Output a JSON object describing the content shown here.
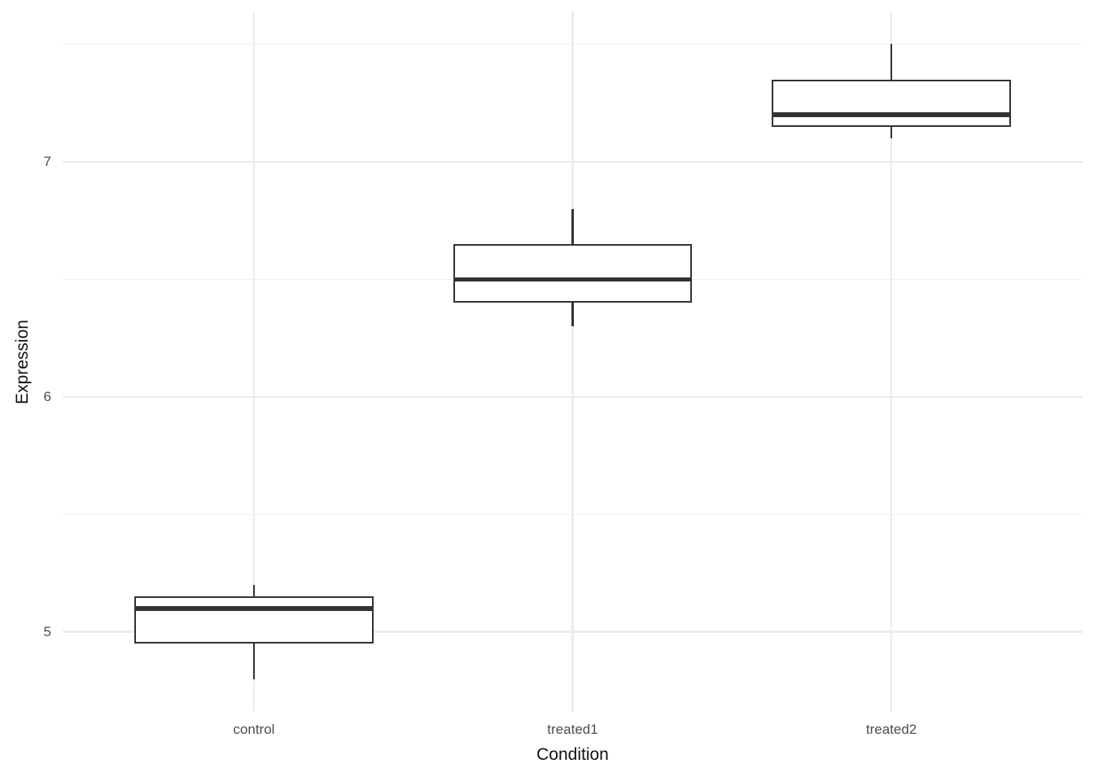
{
  "chart_data": {
    "type": "boxplot",
    "title": "",
    "xlabel": "Condition",
    "ylabel": "Expression",
    "categories": [
      "control",
      "treated1",
      "treated2"
    ],
    "series": [
      {
        "name": "control",
        "min": 4.8,
        "q1": 4.95,
        "median": 5.1,
        "q3": 5.15,
        "max": 5.2
      },
      {
        "name": "treated1",
        "min": 6.3,
        "q1": 6.4,
        "median": 6.5,
        "q3": 6.65,
        "max": 6.8
      },
      {
        "name": "treated2",
        "min": 7.1,
        "q1": 7.15,
        "median": 7.2,
        "q3": 7.35,
        "max": 7.5
      }
    ],
    "ylim": [
      4.66,
      7.64
    ],
    "y_major_ticks": [
      5,
      6,
      7
    ],
    "y_major_tick_labels": [
      "5",
      "6",
      "7"
    ],
    "y_minor_ticks": [
      5.5,
      6.5,
      7.5
    ],
    "grid": true,
    "legend": "none",
    "outliers": [],
    "colors": {
      "box_stroke": "#333333",
      "box_fill": "#ffffff",
      "grid_major": "#ebebeb",
      "grid_minor": "#f1f1f1",
      "axis_text": "#4d4d4d",
      "axis_title": "#111111",
      "background": "#ffffff"
    }
  }
}
